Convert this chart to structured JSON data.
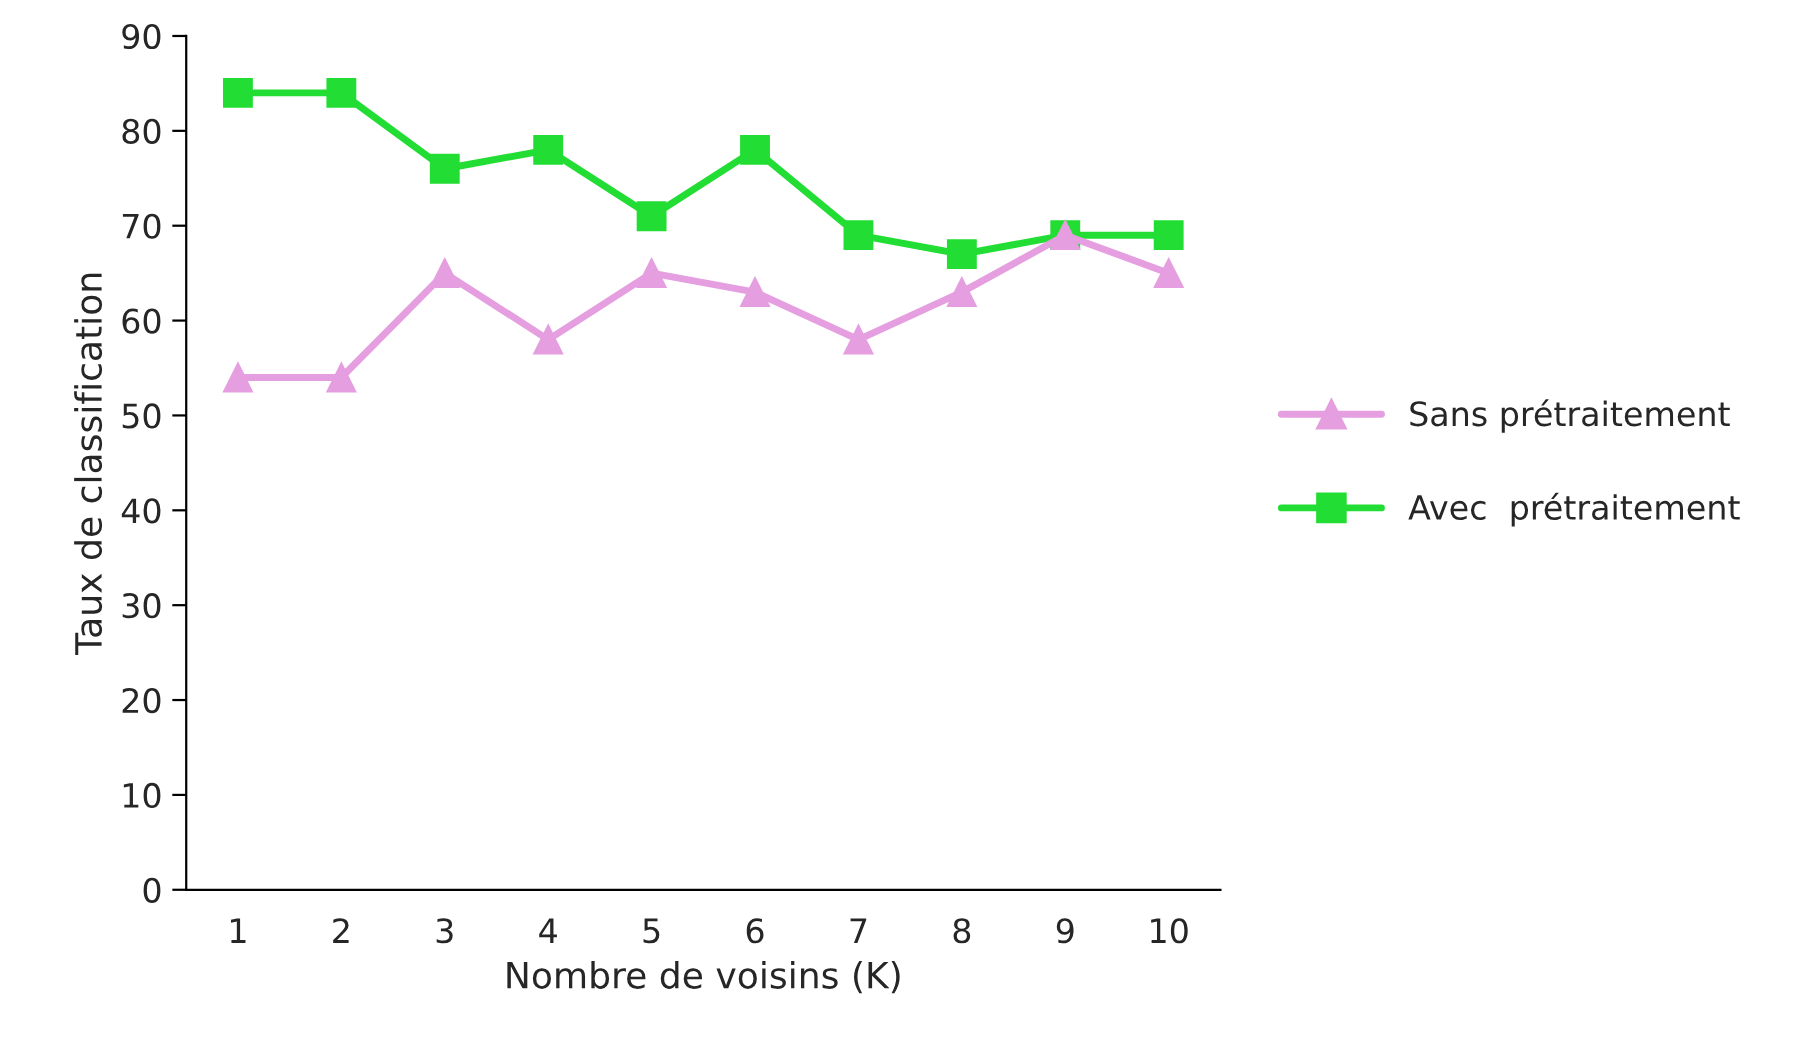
{
  "chart_data": {
    "type": "line",
    "xlabel": "Nombre de voisins (K)",
    "ylabel": "Taux de classification",
    "categories": [
      "1",
      "2",
      "3",
      "4",
      "5",
      "6",
      "7",
      "8",
      "9",
      "10"
    ],
    "series": [
      {
        "name": "Sans prétraitement",
        "color": "#e59ee0",
        "marker": "triangle",
        "values": [
          54,
          54,
          65,
          58,
          65,
          63,
          58,
          63,
          69,
          65
        ]
      },
      {
        "name": "Avec  prétraitement",
        "color": "#22dd33",
        "marker": "square",
        "values": [
          84,
          84,
          76,
          78,
          71,
          78,
          69,
          67,
          69,
          69
        ]
      }
    ],
    "ylim": [
      0,
      90
    ],
    "yticks": [
      0,
      10,
      20,
      30,
      40,
      50,
      60,
      70,
      80,
      90
    ],
    "grid": false,
    "legend": "right",
    "line_style": "solid"
  }
}
